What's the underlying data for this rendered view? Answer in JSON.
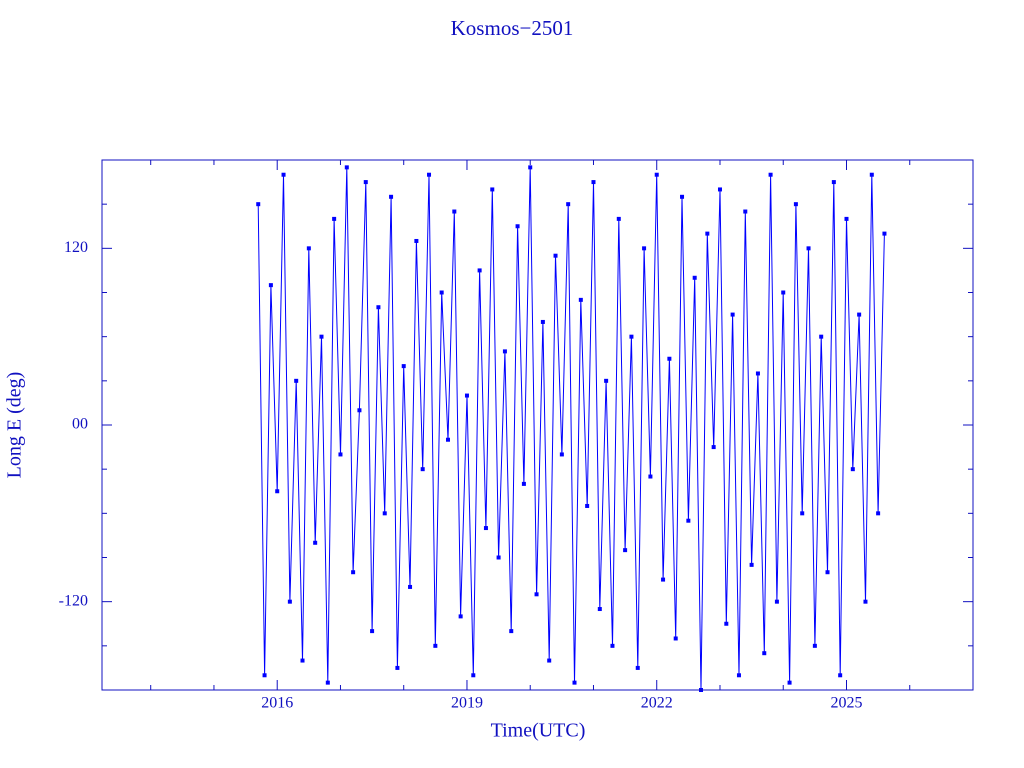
{
  "chart_data": {
    "type": "line",
    "title": "Kosmos−2501",
    "x_label": "Time(UTC)",
    "y_label": "Long E (deg)",
    "color": "#0000ff",
    "axis_color": "#1010c0",
    "xlim": [
      2013.23,
      2027.0
    ],
    "ylim": [
      -180,
      180
    ],
    "xticks": [
      2016,
      2019,
      2022,
      2025
    ],
    "xminorticks": [
      2014,
      2015,
      2017,
      2018,
      2020,
      2021,
      2023,
      2024,
      2026
    ],
    "yticks": [
      120,
      {
        "value": 0,
        "label": "00"
      },
      -120
    ],
    "yminorticks": [
      150,
      90,
      60,
      30,
      -30,
      -60,
      -90,
      -150
    ],
    "x": [
      2015.7,
      2015.8,
      2015.9,
      2016.0,
      2016.1,
      2016.2,
      2016.3,
      2016.4,
      2016.5,
      2016.6,
      2016.7,
      2016.8,
      2016.9,
      2017.0,
      2017.1,
      2017.2,
      2017.3,
      2017.4,
      2017.5,
      2017.6,
      2017.7,
      2017.8,
      2017.9,
      2018.0,
      2018.1,
      2018.2,
      2018.3,
      2018.4,
      2018.5,
      2018.6,
      2018.7,
      2018.8,
      2018.9,
      2019.0,
      2019.1,
      2019.2,
      2019.3,
      2019.4,
      2019.5,
      2019.6,
      2019.7,
      2019.8,
      2019.9,
      2020.0,
      2020.1,
      2020.2,
      2020.3,
      2020.4,
      2020.5,
      2020.6,
      2020.7,
      2020.8,
      2020.9,
      2021.0,
      2021.1,
      2021.2,
      2021.3,
      2021.4,
      2021.5,
      2021.6,
      2021.7,
      2021.8,
      2021.9,
      2022.0,
      2022.1,
      2022.2,
      2022.3,
      2022.4,
      2022.5,
      2022.6,
      2022.7,
      2022.8,
      2022.9,
      2023.0,
      2023.1,
      2023.2,
      2023.3,
      2023.4,
      2023.5,
      2023.6,
      2023.7,
      2023.8,
      2023.9,
      2024.0,
      2024.1,
      2024.2,
      2024.3,
      2024.4,
      2024.5,
      2024.6,
      2024.7,
      2024.8,
      2024.9,
      2025.0,
      2025.1,
      2025.2,
      2025.3,
      2025.4,
      2025.5,
      2025.6
    ],
    "values": [
      150,
      -170,
      95,
      -45,
      170,
      -120,
      30,
      -160,
      120,
      -80,
      60,
      -175,
      140,
      -20,
      175,
      -100,
      10,
      165,
      -140,
      80,
      -60,
      155,
      -165,
      40,
      -110,
      125,
      -30,
      170,
      -150,
      90,
      -10,
      145,
      -130,
      20,
      -170,
      105,
      -70,
      160,
      -90,
      50,
      -140,
      135,
      -40,
      175,
      -115,
      70,
      -160,
      115,
      -20,
      150,
      -175,
      85,
      -55,
      165,
      -125,
      30,
      -150,
      140,
      -85,
      60,
      -165,
      120,
      -35,
      170,
      -105,
      45,
      -145,
      155,
      -65,
      100,
      -180,
      130,
      -15,
      160,
      -135,
      75,
      -170,
      145,
      -95,
      35,
      -155,
      170,
      -120,
      90,
      -175,
      150,
      -60,
      120,
      -150,
      60,
      -100,
      165,
      -170,
      140,
      -30,
      75,
      -120,
      170,
      -60,
      130
    ]
  }
}
